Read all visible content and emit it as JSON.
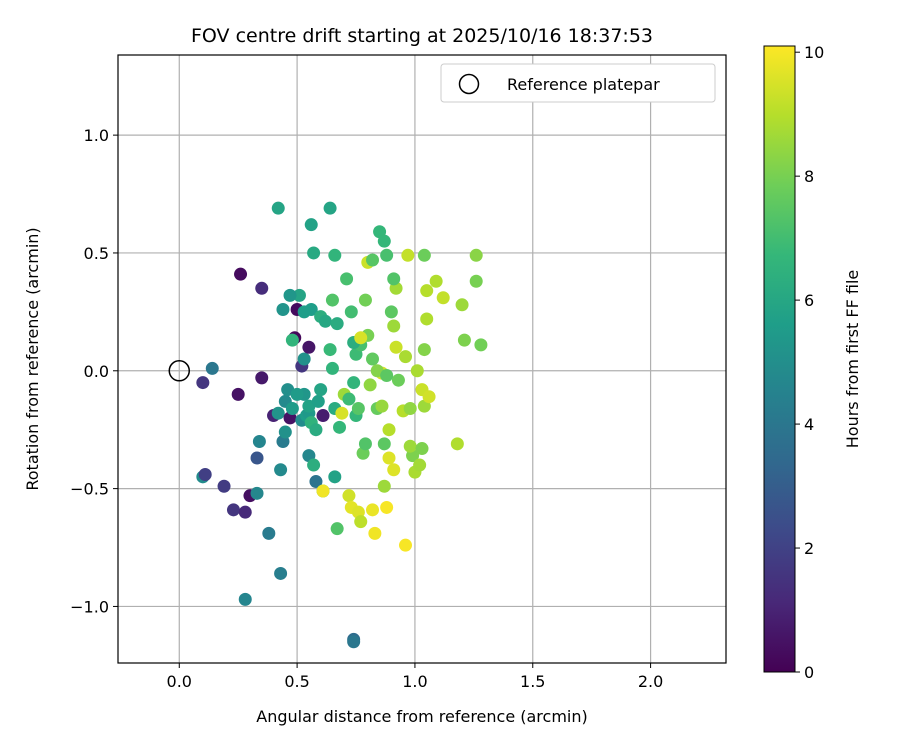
{
  "chart_data": {
    "type": "scatter",
    "title": "FOV centre drift starting at 2025/10/16 18:37:53",
    "xlabel": "Angular distance from reference (arcmin)",
    "ylabel": "Rotation from reference (arcmin)",
    "xlim": [
      -0.26,
      2.32
    ],
    "ylim": [
      -1.24,
      1.34
    ],
    "x_ticks": [
      0.0,
      0.5,
      1.0,
      1.5,
      2.0
    ],
    "x_tick_labels": [
      "0.0",
      "0.5",
      "1.0",
      "1.5",
      "2.0"
    ],
    "y_ticks": [
      -1.0,
      -0.5,
      0.0,
      0.5,
      1.0
    ],
    "y_tick_labels": [
      "−1.0",
      "−0.5",
      "0.0",
      "0.5",
      "1.0"
    ],
    "grid": true,
    "legend": {
      "position": "top-right",
      "entries": [
        "Reference platepar"
      ]
    },
    "reference_point": {
      "x": 0.0,
      "y": 0.0,
      "label": "Reference platepar"
    },
    "colorbar": {
      "label": "Hours from first FF file",
      "range": [
        0,
        10.1
      ],
      "ticks": [
        0,
        2,
        4,
        6,
        8,
        10
      ],
      "tick_labels": [
        "0",
        "2",
        "4",
        "6",
        "8",
        "10"
      ],
      "colormap": "viridis"
    },
    "colormap_stops": [
      "#440154",
      "#482878",
      "#3e4989",
      "#31688e",
      "#26828e",
      "#1f9e89",
      "#35b779",
      "#6ece58",
      "#b5de2b",
      "#fde725"
    ],
    "points": [
      {
        "x": 0.26,
        "y": 0.41,
        "h": 0.3
      },
      {
        "x": 0.35,
        "y": 0.35,
        "h": 1.3
      },
      {
        "x": 0.25,
        "y": -0.1,
        "h": 0.5
      },
      {
        "x": 0.35,
        "y": -0.03,
        "h": 0.7
      },
      {
        "x": 0.1,
        "y": -0.05,
        "h": 1.6
      },
      {
        "x": 0.14,
        "y": 0.01,
        "h": 4.0
      },
      {
        "x": 0.1,
        "y": -0.45,
        "h": 4.9
      },
      {
        "x": 0.11,
        "y": -0.44,
        "h": 1.9
      },
      {
        "x": 0.19,
        "y": -0.49,
        "h": 1.8
      },
      {
        "x": 0.23,
        "y": -0.59,
        "h": 1.6
      },
      {
        "x": 0.28,
        "y": -0.6,
        "h": 1.2
      },
      {
        "x": 0.3,
        "y": -0.53,
        "h": 0.4
      },
      {
        "x": 0.33,
        "y": -0.52,
        "h": 4.7
      },
      {
        "x": 0.33,
        "y": -0.37,
        "h": 2.7
      },
      {
        "x": 0.38,
        "y": -0.69,
        "h": 4.2
      },
      {
        "x": 0.28,
        "y": -0.97,
        "h": 4.6
      },
      {
        "x": 0.43,
        "y": -0.86,
        "h": 4.3
      },
      {
        "x": 0.34,
        "y": -0.3,
        "h": 4.6
      },
      {
        "x": 0.4,
        "y": -0.19,
        "h": 1.0
      },
      {
        "x": 0.42,
        "y": -0.18,
        "h": 5.2
      },
      {
        "x": 0.43,
        "y": -0.42,
        "h": 4.8
      },
      {
        "x": 0.44,
        "y": -0.3,
        "h": 4.2
      },
      {
        "x": 0.45,
        "y": -0.26,
        "h": 5.1
      },
      {
        "x": 0.45,
        "y": -0.13,
        "h": 4.8
      },
      {
        "x": 0.46,
        "y": -0.08,
        "h": 5.0
      },
      {
        "x": 0.47,
        "y": -0.2,
        "h": 0.5
      },
      {
        "x": 0.48,
        "y": -0.16,
        "h": 5.5
      },
      {
        "x": 0.49,
        "y": 0.14,
        "h": 0.2
      },
      {
        "x": 0.48,
        "y": 0.13,
        "h": 6.6
      },
      {
        "x": 0.5,
        "y": 0.26,
        "h": 0.3
      },
      {
        "x": 0.51,
        "y": 0.32,
        "h": 5.9
      },
      {
        "x": 0.52,
        "y": -0.21,
        "h": 4.9
      },
      {
        "x": 0.52,
        "y": 0.02,
        "h": 1.6
      },
      {
        "x": 0.53,
        "y": 0.05,
        "h": 5.1
      },
      {
        "x": 0.53,
        "y": -0.1,
        "h": 5.3
      },
      {
        "x": 0.54,
        "y": -0.19,
        "h": 5.6
      },
      {
        "x": 0.55,
        "y": 0.1,
        "h": 0.6
      },
      {
        "x": 0.55,
        "y": -0.18,
        "h": 5.4
      },
      {
        "x": 0.55,
        "y": -0.15,
        "h": 5.8
      },
      {
        "x": 0.56,
        "y": 0.26,
        "h": 5.6
      },
      {
        "x": 0.55,
        "y": -0.36,
        "h": 4.7
      },
      {
        "x": 0.57,
        "y": -0.4,
        "h": 6.3
      },
      {
        "x": 0.56,
        "y": -0.22,
        "h": 6.5
      },
      {
        "x": 0.58,
        "y": -0.25,
        "h": 6.2
      },
      {
        "x": 0.58,
        "y": -0.47,
        "h": 3.9
      },
      {
        "x": 0.59,
        "y": -0.13,
        "h": 5.7
      },
      {
        "x": 0.6,
        "y": 0.23,
        "h": 6.3
      },
      {
        "x": 0.61,
        "y": -0.19,
        "h": 0.8
      },
      {
        "x": 0.61,
        "y": -0.51,
        "h": 6.6
      },
      {
        "x": 0.62,
        "y": 0.21,
        "h": 6.0
      },
      {
        "x": 0.64,
        "y": 0.09,
        "h": 6.8
      },
      {
        "x": 0.65,
        "y": 0.01,
        "h": 6.6
      },
      {
        "x": 0.65,
        "y": 0.3,
        "h": 7.3
      },
      {
        "x": 0.66,
        "y": -0.16,
        "h": 6.2
      },
      {
        "x": 0.66,
        "y": -0.45,
        "h": 5.8
      },
      {
        "x": 0.67,
        "y": 0.2,
        "h": 6.2
      },
      {
        "x": 0.67,
        "y": -0.67,
        "h": 7.3
      },
      {
        "x": 0.68,
        "y": -0.24,
        "h": 6.7
      },
      {
        "x": 0.69,
        "y": -0.18,
        "h": 9.5
      },
      {
        "x": 0.7,
        "y": -0.1,
        "h": 8.6
      },
      {
        "x": 0.71,
        "y": 0.39,
        "h": 7.1
      },
      {
        "x": 0.72,
        "y": -0.53,
        "h": 9.4
      },
      {
        "x": 0.73,
        "y": 0.25,
        "h": 7.0
      },
      {
        "x": 0.73,
        "y": -0.58,
        "h": 9.7
      },
      {
        "x": 0.74,
        "y": -0.05,
        "h": 6.6
      },
      {
        "x": 0.75,
        "y": 0.07,
        "h": 6.9
      },
      {
        "x": 0.75,
        "y": -0.19,
        "h": 6.7
      },
      {
        "x": 0.76,
        "y": -0.16,
        "h": 7.4
      },
      {
        "x": 0.76,
        "y": -0.6,
        "h": 9.6
      },
      {
        "x": 0.77,
        "y": 0.11,
        "h": 7.1
      },
      {
        "x": 0.77,
        "y": -0.64,
        "h": 9.1
      },
      {
        "x": 0.78,
        "y": -0.35,
        "h": 7.8
      },
      {
        "x": 0.79,
        "y": 0.3,
        "h": 7.9
      },
      {
        "x": 0.8,
        "y": 0.15,
        "h": 8.0
      },
      {
        "x": 0.8,
        "y": 0.46,
        "h": 9.3
      },
      {
        "x": 0.81,
        "y": -0.06,
        "h": 8.4
      },
      {
        "x": 0.82,
        "y": 0.05,
        "h": 7.6
      },
      {
        "x": 0.82,
        "y": -0.59,
        "h": 9.8
      },
      {
        "x": 0.83,
        "y": -0.69,
        "h": 9.9
      },
      {
        "x": 0.84,
        "y": -0.16,
        "h": 7.7
      },
      {
        "x": 0.85,
        "y": 0.59,
        "h": 6.7
      },
      {
        "x": 0.86,
        "y": -0.01,
        "h": 9.4
      },
      {
        "x": 0.87,
        "y": 0.55,
        "h": 6.7
      },
      {
        "x": 0.87,
        "y": -0.49,
        "h": 8.6
      },
      {
        "x": 0.88,
        "y": 0.49,
        "h": 7.1
      },
      {
        "x": 0.88,
        "y": -0.58,
        "h": 10.0
      },
      {
        "x": 0.89,
        "y": -0.37,
        "h": 9.6
      },
      {
        "x": 0.9,
        "y": 0.25,
        "h": 7.5
      },
      {
        "x": 0.91,
        "y": -0.42,
        "h": 9.6
      },
      {
        "x": 0.91,
        "y": 0.19,
        "h": 8.6
      },
      {
        "x": 0.92,
        "y": 0.1,
        "h": 9.3
      },
      {
        "x": 0.92,
        "y": 0.35,
        "h": 8.7
      },
      {
        "x": 0.93,
        "y": -0.04,
        "h": 7.8
      },
      {
        "x": 0.95,
        "y": -0.17,
        "h": 9.0
      },
      {
        "x": 0.96,
        "y": -0.74,
        "h": 10.0
      },
      {
        "x": 0.97,
        "y": 0.49,
        "h": 9.2
      },
      {
        "x": 0.98,
        "y": -0.16,
        "h": 8.4
      },
      {
        "x": 0.99,
        "y": -0.36,
        "h": 8.1
      },
      {
        "x": 1.0,
        "y": -0.43,
        "h": 8.8
      },
      {
        "x": 1.01,
        "y": 0.0,
        "h": 8.8
      },
      {
        "x": 1.02,
        "y": -0.4,
        "h": 8.7
      },
      {
        "x": 1.03,
        "y": -0.08,
        "h": 9.3
      },
      {
        "x": 1.04,
        "y": 0.49,
        "h": 7.8
      },
      {
        "x": 1.04,
        "y": -0.15,
        "h": 8.6
      },
      {
        "x": 1.05,
        "y": 0.22,
        "h": 8.9
      },
      {
        "x": 1.05,
        "y": 0.34,
        "h": 9.0
      },
      {
        "x": 1.06,
        "y": -0.11,
        "h": 9.4
      },
      {
        "x": 1.09,
        "y": 0.38,
        "h": 8.9
      },
      {
        "x": 1.12,
        "y": 0.31,
        "h": 9.2
      },
      {
        "x": 1.18,
        "y": -0.31,
        "h": 8.9
      },
      {
        "x": 1.2,
        "y": 0.28,
        "h": 8.6
      },
      {
        "x": 1.21,
        "y": 0.13,
        "h": 8.1
      },
      {
        "x": 1.26,
        "y": 0.38,
        "h": 8.0
      },
      {
        "x": 1.26,
        "y": 0.49,
        "h": 8.3
      },
      {
        "x": 1.28,
        "y": 0.11,
        "h": 7.9
      },
      {
        "x": 0.42,
        "y": 0.69,
        "h": 5.9
      },
      {
        "x": 0.56,
        "y": 0.62,
        "h": 5.8
      },
      {
        "x": 0.64,
        "y": 0.69,
        "h": 5.9
      },
      {
        "x": 0.57,
        "y": 0.5,
        "h": 6.1
      },
      {
        "x": 0.66,
        "y": 0.49,
        "h": 6.6
      },
      {
        "x": 0.74,
        "y": 0.12,
        "h": 6.3
      },
      {
        "x": 0.47,
        "y": 0.32,
        "h": 5.3
      },
      {
        "x": 0.44,
        "y": 0.26,
        "h": 5.2
      },
      {
        "x": 0.53,
        "y": 0.25,
        "h": 5.6
      },
      {
        "x": 0.5,
        "y": -0.1,
        "h": 5.5
      },
      {
        "x": 0.6,
        "y": -0.08,
        "h": 5.9
      },
      {
        "x": 0.82,
        "y": 0.47,
        "h": 7.4
      },
      {
        "x": 0.91,
        "y": 0.39,
        "h": 7.3
      },
      {
        "x": 0.79,
        "y": -0.31,
        "h": 7.3
      },
      {
        "x": 0.87,
        "y": -0.31,
        "h": 7.5
      },
      {
        "x": 0.98,
        "y": -0.32,
        "h": 8.6
      },
      {
        "x": 1.03,
        "y": -0.33,
        "h": 8.1
      },
      {
        "x": 0.72,
        "y": -0.12,
        "h": 6.9
      },
      {
        "x": 0.86,
        "y": -0.15,
        "h": 8.5
      },
      {
        "x": 0.89,
        "y": -0.25,
        "h": 9.0
      },
      {
        "x": 0.77,
        "y": 0.14,
        "h": 9.5
      },
      {
        "x": 0.61,
        "y": -0.51,
        "h": 9.9
      },
      {
        "x": 0.84,
        "y": 0.0,
        "h": 8.2
      },
      {
        "x": 0.88,
        "y": -0.02,
        "h": 7.5
      },
      {
        "x": 0.96,
        "y": 0.06,
        "h": 8.8
      },
      {
        "x": 1.04,
        "y": 0.09,
        "h": 8.2
      },
      {
        "x": 0.74,
        "y": -1.14,
        "h": 3.6
      },
      {
        "x": 0.74,
        "y": -1.15,
        "h": 4.0
      }
    ]
  }
}
